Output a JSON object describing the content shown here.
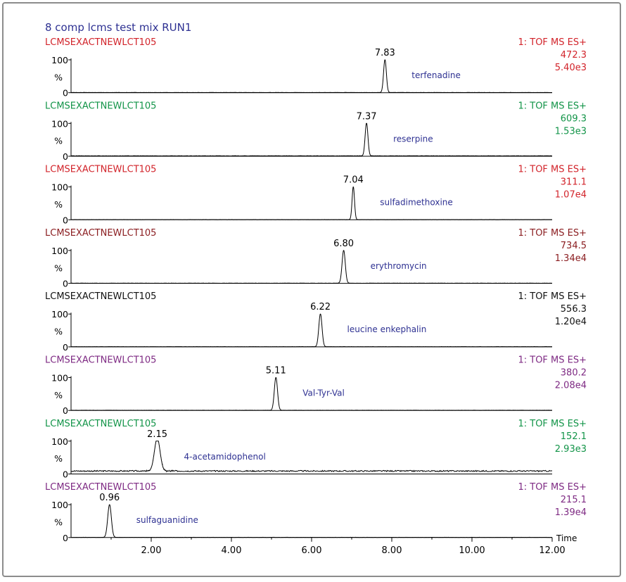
{
  "chart_data": {
    "type": "line",
    "title": "8 comp lcms test mix RUN1",
    "x_axis": {
      "label": "Time",
      "range": [
        0.0,
        12.0
      ],
      "ticks": [
        "2.00",
        "4.00",
        "6.00",
        "8.00",
        "10.00",
        "12.00"
      ]
    },
    "y_axis": {
      "ticks": [
        "0",
        "100"
      ],
      "unit": "%"
    },
    "grid": false,
    "colors": {
      "red": "#d2232a",
      "green": "#129448",
      "dark_red": "#8a1c1f",
      "black": "#111111",
      "purple": "#7e2a83",
      "navy": "#2e3192"
    },
    "traces": [
      {
        "file": "LCMSEXACTNEWLCT105",
        "function": "1: TOF MS ES+",
        "mass": "472.3",
        "intensity": "5.40e3",
        "compound": "terfenadine",
        "peak_time": 7.83,
        "peak_label": "7.83",
        "color": "#d2232a",
        "baseline": 0.6,
        "noise": 0.3,
        "peak_width": 0.035
      },
      {
        "file": "LCMSEXACTNEWLCT105",
        "function": "1: TOF MS ES+",
        "mass": "609.3",
        "intensity": "1.53e3",
        "compound": "reserpine",
        "peak_time": 7.37,
        "peak_label": "7.37",
        "color": "#129448",
        "baseline": 1.2,
        "noise": 0.5,
        "peak_width": 0.035
      },
      {
        "file": "LCMSEXACTNEWLCT105",
        "function": "1: TOF MS ES+",
        "mass": "311.1",
        "intensity": "1.07e4",
        "compound": "sulfadimethoxine",
        "peak_time": 7.04,
        "peak_label": "7.04",
        "color": "#d2232a",
        "baseline": 0.5,
        "noise": 0.3,
        "peak_width": 0.03
      },
      {
        "file": "LCMSEXACTNEWLCT105",
        "function": "1: TOF MS ES+",
        "mass": "734.5",
        "intensity": "1.34e4",
        "compound": "erythromycin",
        "peak_time": 6.8,
        "peak_label": "6.80",
        "color": "#8a1c1f",
        "baseline": 0.5,
        "noise": 0.3,
        "peak_width": 0.04
      },
      {
        "file": "LCMSEXACTNEWLCT105",
        "function": "1: TOF MS ES+",
        "mass": "556.3",
        "intensity": "1.20e4",
        "compound": "leucine enkephalin",
        "peak_time": 6.22,
        "peak_label": "6.22",
        "color": "#111111",
        "baseline": 0.5,
        "noise": 0.3,
        "peak_width": 0.04
      },
      {
        "file": "LCMSEXACTNEWLCT105",
        "function": "1: TOF MS ES+",
        "mass": "380.2",
        "intensity": "2.08e4",
        "compound": "Val-Tyr-Val",
        "peak_time": 5.11,
        "peak_label": "5.11",
        "color": "#7e2a83",
        "baseline": 0.5,
        "noise": 0.3,
        "peak_width": 0.04
      },
      {
        "file": "LCMSEXACTNEWLCT105",
        "function": "1: TOF MS ES+",
        "mass": "152.1",
        "intensity": "2.93e3",
        "compound": "4-acetamidophenol",
        "peak_time": 2.15,
        "peak_label": "2.15",
        "color": "#129448",
        "baseline": 9,
        "noise": 2,
        "peak_width": 0.07
      },
      {
        "file": "LCMSEXACTNEWLCT105",
        "function": "1: TOF MS ES+",
        "mass": "215.1",
        "intensity": "1.39e4",
        "compound": "sulfaguanidine",
        "peak_time": 0.96,
        "peak_label": "0.96",
        "color": "#7e2a83",
        "baseline": 0.5,
        "noise": 0.3,
        "peak_width": 0.045
      }
    ]
  }
}
